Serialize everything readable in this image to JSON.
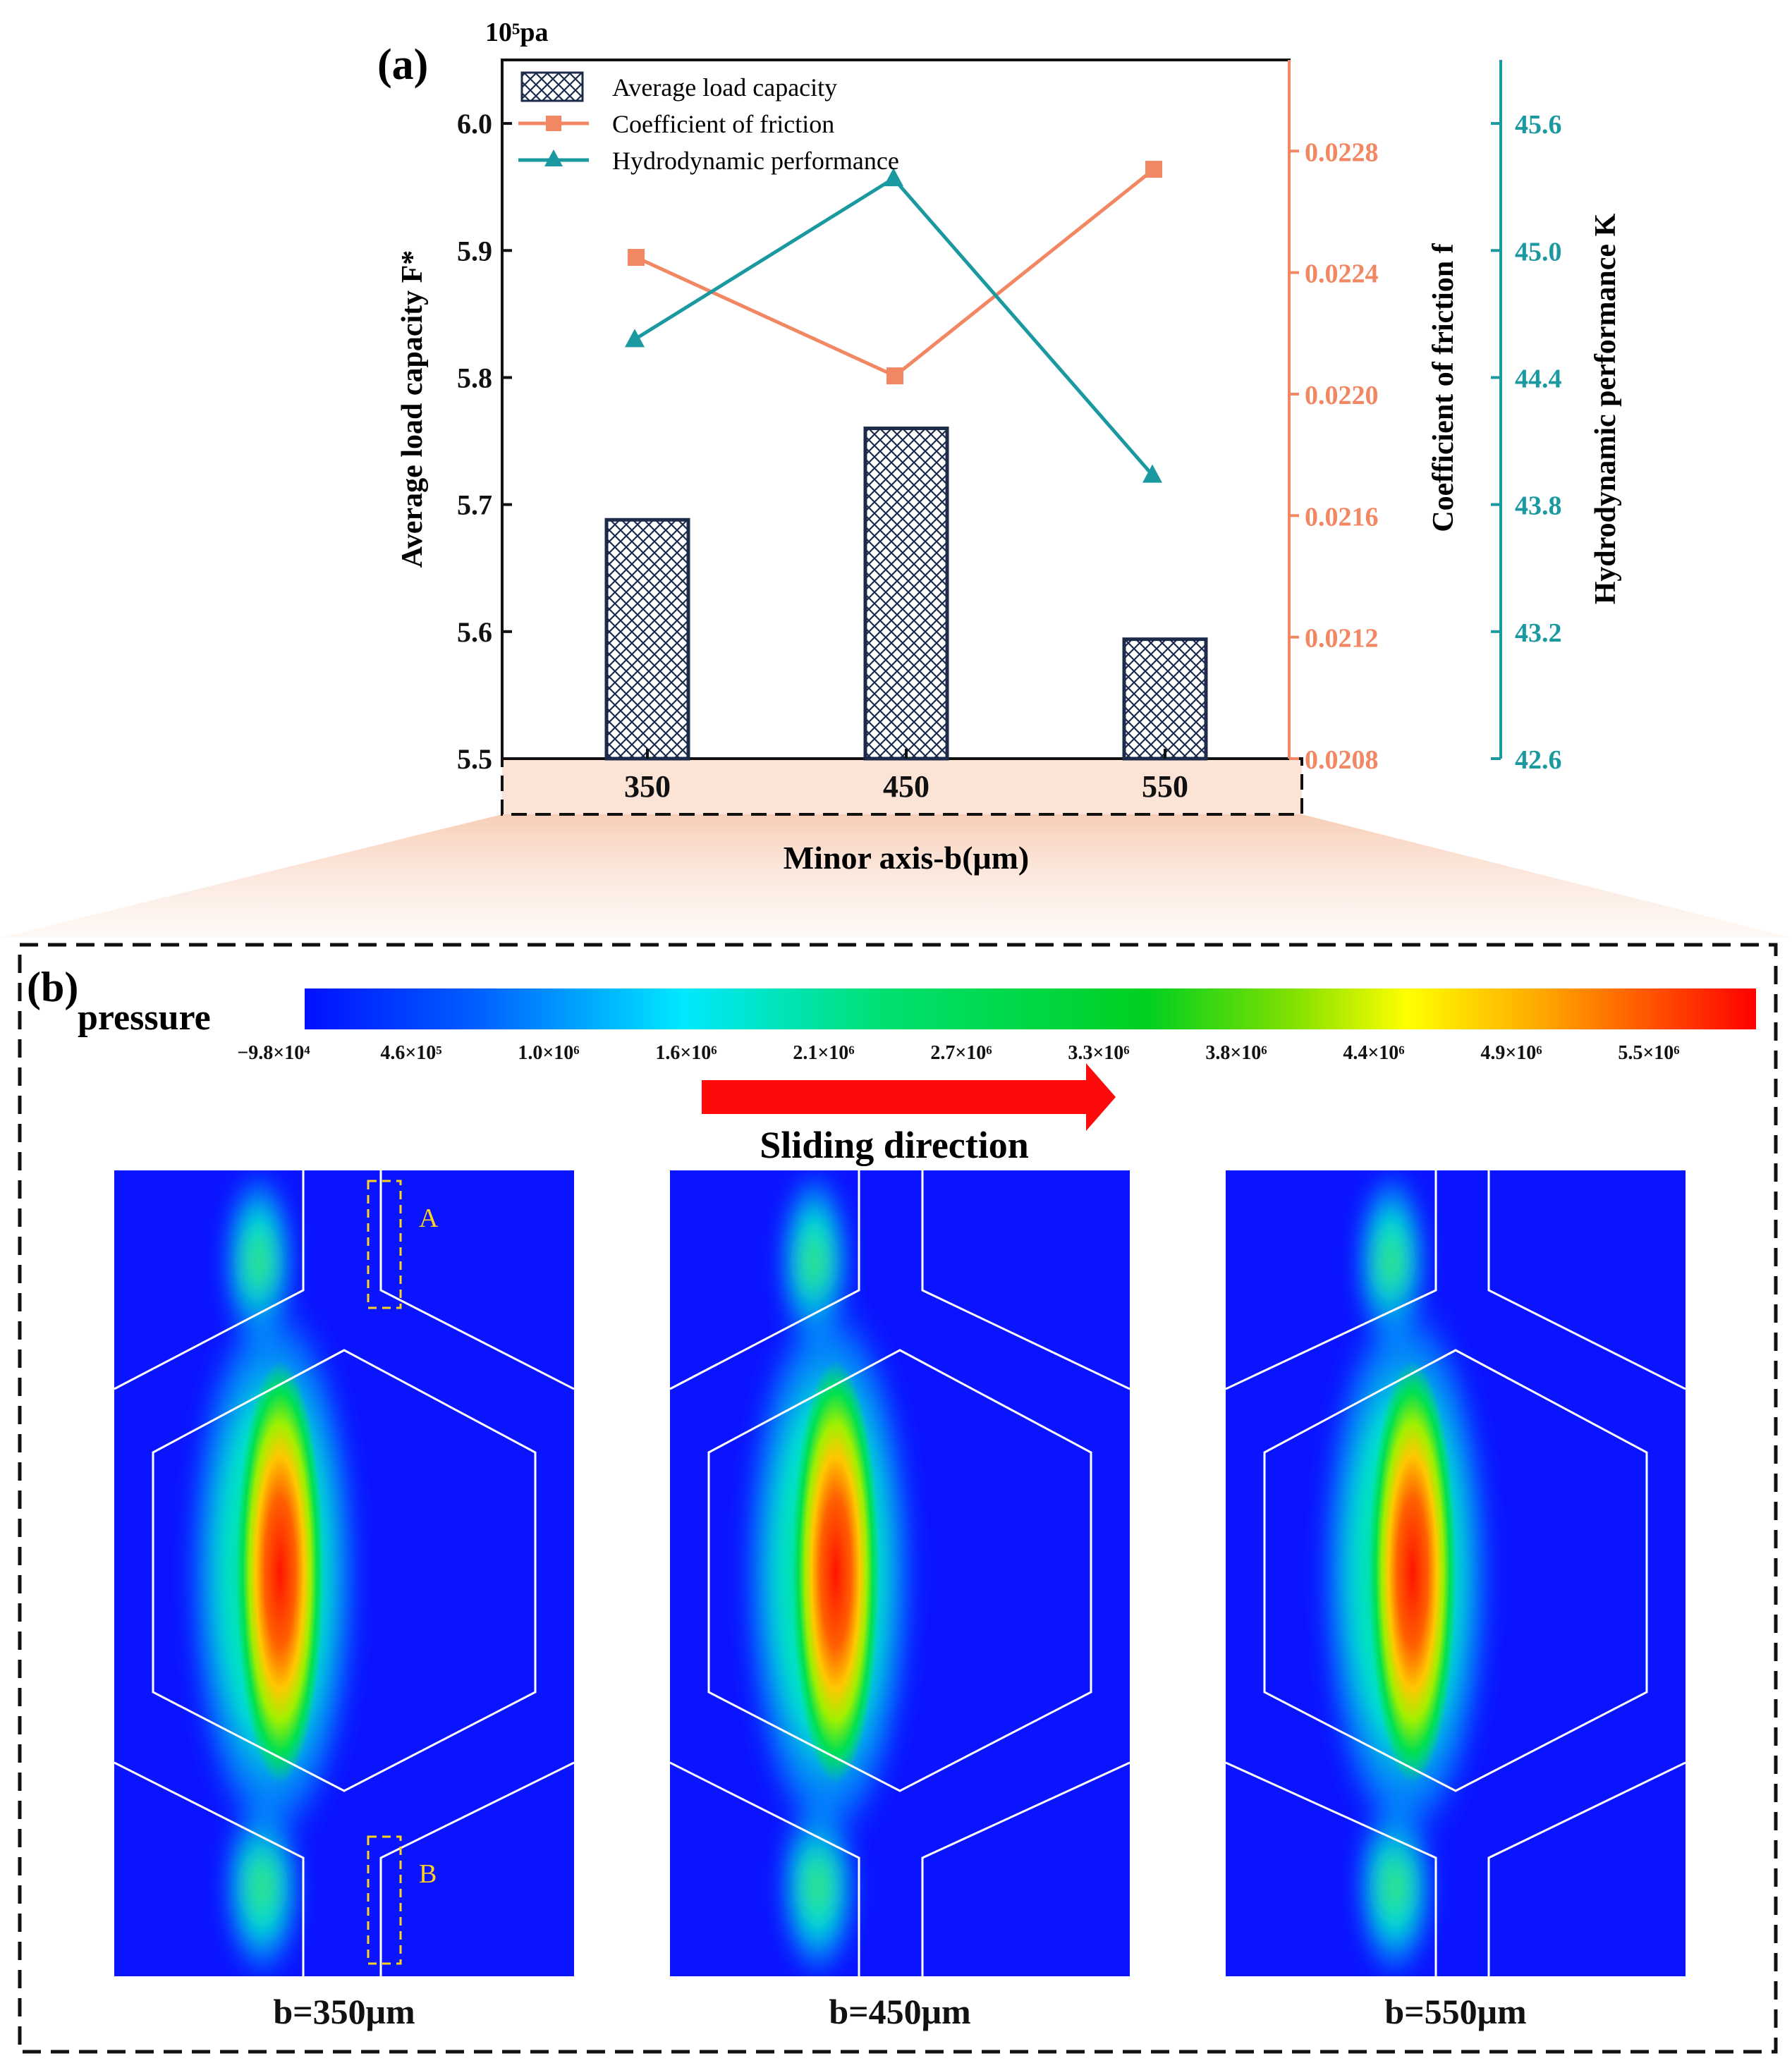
{
  "chart_data": {
    "type": "bar",
    "panel_label": "(a)",
    "categories": [
      "350",
      "450",
      "550"
    ],
    "xlabel": "Minor axis-b(μm)",
    "unit_label": "10⁵pa",
    "axes": {
      "left": {
        "label": "Average load capacity F*",
        "min": 5.5,
        "max": 6.05,
        "ticks": [
          5.5,
          5.6,
          5.7,
          5.8,
          5.9,
          6.0
        ],
        "tick_labels": [
          "5.5",
          "5.6",
          "5.7",
          "5.8",
          "5.9",
          "6.0"
        ],
        "color": "#000000"
      },
      "right1": {
        "label": "Coefficient of friction f",
        "min": 0.0208,
        "max": 0.0231,
        "ticks": [
          0.0208,
          0.0212,
          0.0216,
          0.022,
          0.0224,
          0.0228
        ],
        "tick_labels": [
          "0.0208",
          "0.0212",
          "0.0216",
          "0.0220",
          "0.0224",
          "0.0228"
        ],
        "color": "#f28763"
      },
      "right2": {
        "label": "Hydrodynamic performance K",
        "min": 42.6,
        "max": 45.9,
        "ticks": [
          42.6,
          43.2,
          43.8,
          44.4,
          45.0,
          45.6
        ],
        "tick_labels": [
          "42.6",
          "43.2",
          "43.8",
          "44.4",
          "45.0",
          "45.6"
        ],
        "color": "#1a9aa0"
      }
    },
    "series": [
      {
        "name": "Average load capacity",
        "kind": "bar",
        "axis": "left",
        "values": [
          5.688,
          5.76,
          5.594
        ],
        "color": "#1d2b4a"
      },
      {
        "name": "Coefficient of friction",
        "kind": "line",
        "axis": "right1",
        "marker": "square",
        "values": [
          0.02245,
          0.02206,
          0.02274
        ],
        "color": "#f28763"
      },
      {
        "name": "Hydrodynamic performance",
        "kind": "line",
        "axis": "right2",
        "marker": "triangle",
        "values": [
          44.58,
          45.34,
          43.94
        ],
        "color": "#1a9aa0"
      }
    ],
    "legend": [
      "Average load capacity",
      "Coefficient of friction",
      "Hydrodynamic performance"
    ],
    "legend_position": "top-left"
  },
  "panel_b": {
    "label": "(b)",
    "colorbar_title": "pressure",
    "colorbar_ticks": [
      "−9.8×10⁴",
      "4.6×10⁵",
      "1.0×10⁶",
      "1.6×10⁶",
      "2.1×10⁶",
      "2.7×10⁶",
      "3.3×10⁶",
      "3.8×10⁶",
      "4.4×10⁶",
      "4.9×10⁶",
      "5.5×10⁶"
    ],
    "arrow_label": "Sliding direction",
    "plots": [
      {
        "caption": "b=350μm",
        "markers": [
          "A",
          "B"
        ]
      },
      {
        "caption": "b=450μm",
        "markers": []
      },
      {
        "caption": "b=550μm",
        "markers": []
      }
    ]
  }
}
